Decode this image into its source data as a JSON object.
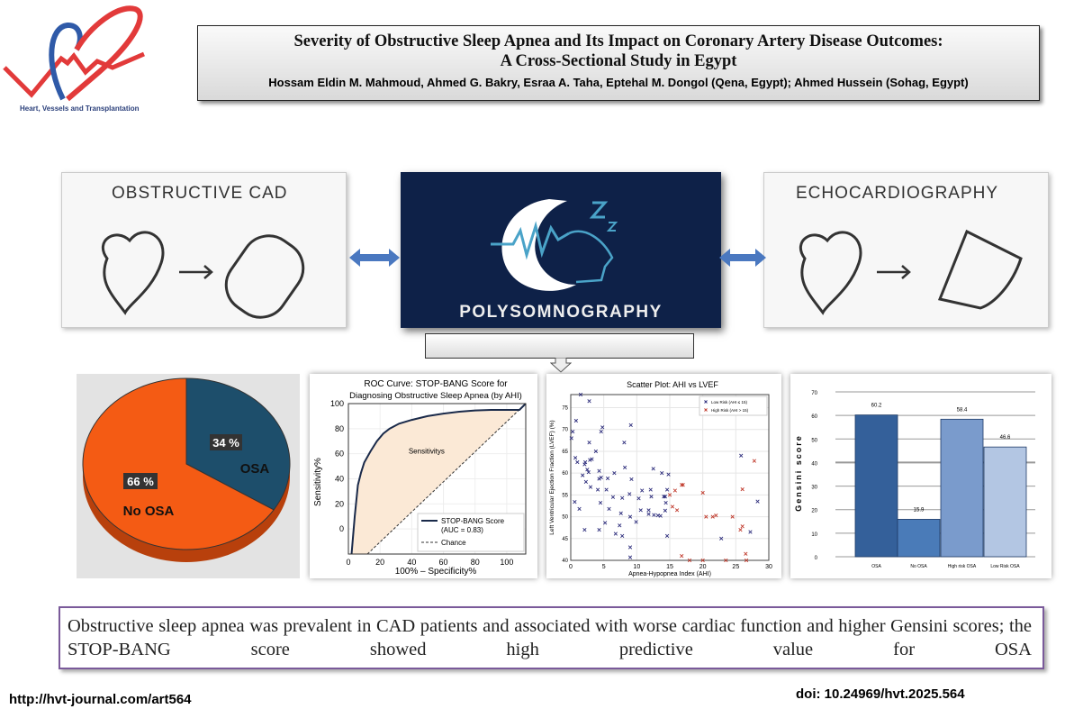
{
  "logo": {
    "text": "Heart, Vessels and Transplantation"
  },
  "header": {
    "title_line1": "Severity of Obstructive Sleep Apnea and Its Impact on Coronary Artery Disease Outcomes:",
    "title_line2": "A Cross-Sectional Study in Egypt",
    "authors": "Hossam Eldin M. Mahmoud, Ahmed G. Bakry, Esraa A. Taha, Eptehal M. Dongol (Qena, Egypt); Ahmed Hussein (Sohag, Egypt)"
  },
  "panels": {
    "left": "OBSTRUCTIVE CAD",
    "center": "POLYSOMNOGRAPHY",
    "right": "ECHOCARDIOGRAPHY"
  },
  "colors": {
    "navy": "#0e2148",
    "osa": "#1d4e6b",
    "no_osa": "#f45b14",
    "roc_line": "#1a2a4a",
    "roc_fill": "#fbe9d6",
    "low_risk": "#2a2a7a",
    "high_risk": "#c0392b",
    "bar_osa": "#34609a",
    "bar_no_osa": "#4a7bb8",
    "bar_high": "#7a9bcc",
    "bar_low": "#b3c6e3"
  },
  "chart_data": [
    {
      "type": "pie",
      "slices": [
        {
          "label": "OSA",
          "value": 34,
          "text": "34 %"
        },
        {
          "label": "No OSA",
          "value": 66,
          "text": "66 %"
        }
      ]
    },
    {
      "type": "line",
      "title": "ROC Curve: STOP-BANG Score for",
      "title2": "Diagnosing Obstructive Sleep Apnea (by AHI)",
      "xlabel": "100% – Specificity%",
      "ylabel": "Sensitivity%",
      "xlim": [
        0,
        112
      ],
      "ylim": [
        -20,
        100
      ],
      "xticks": [
        "0",
        "20",
        "40",
        "60",
        "80",
        "100"
      ],
      "yticks": [
        "0",
        "20",
        "40",
        "60",
        "80",
        "100"
      ],
      "annotation": "Sensitivitys",
      "grid": true,
      "legend": "bottom-right",
      "series": [
        {
          "name": "STOP-BANG Score",
          "name2": "(AUC = 0.83)",
          "x": [
            2,
            4,
            6,
            8,
            10,
            14,
            18,
            22,
            26,
            32,
            40,
            50,
            60,
            70,
            80,
            90,
            100,
            108,
            112
          ],
          "y": [
            -20,
            10,
            35,
            45,
            53,
            62,
            70,
            76,
            80,
            84,
            87,
            90,
            92,
            93.5,
            94.5,
            95,
            95,
            95,
            100
          ]
        },
        {
          "name": "Chance",
          "x": [
            12,
            112
          ],
          "y": [
            -20,
            100
          ]
        }
      ]
    },
    {
      "type": "scatter",
      "title": "Scatter Plot: AHI vs LVEF",
      "xlabel": "Apnea-Hypopnea Index (AHI)",
      "ylabel": "Left Ventricular Ejection Fraction (LVEF) (%)",
      "xlim": [
        0,
        30
      ],
      "ylim": [
        40,
        78
      ],
      "xticks": [
        "0",
        "5",
        "10",
        "15",
        "20",
        "25",
        "30"
      ],
      "yticks": [
        "40",
        "45",
        "50",
        "55",
        "60",
        "65",
        "70",
        "75"
      ],
      "grid": true,
      "legend": "top-right",
      "series": [
        {
          "name": "Low Risk (AHI ≤ 15)",
          "points": [
            [
              1.5,
              78
            ],
            [
              2.8,
              76.5
            ],
            [
              0.8,
              72
            ],
            [
              9.1,
              71
            ],
            [
              4.8,
              70.5
            ],
            [
              4.6,
              69.5
            ],
            [
              0.3,
              69.5
            ],
            [
              0.1,
              68
            ],
            [
              2.8,
              67
            ],
            [
              8.1,
              67
            ],
            [
              3.8,
              65
            ],
            [
              0.7,
              63.5
            ],
            [
              3.2,
              63.2
            ],
            [
              2.9,
              63
            ],
            [
              1,
              62.5
            ],
            [
              2.2,
              62.5
            ],
            [
              2.1,
              62
            ],
            [
              8.2,
              61.3
            ],
            [
              2.5,
              60.8
            ],
            [
              12.5,
              61
            ],
            [
              2.7,
              60.2
            ],
            [
              4.3,
              60.5
            ],
            [
              6.6,
              60
            ],
            [
              13.8,
              60
            ],
            [
              14.8,
              59.7
            ],
            [
              1.8,
              59.5
            ],
            [
              4.6,
              59
            ],
            [
              5.6,
              58.8
            ],
            [
              4.3,
              58.7
            ],
            [
              9.2,
              58.6
            ],
            [
              2.3,
              58
            ],
            [
              3,
              56.8
            ],
            [
              4.1,
              56.2
            ],
            [
              5.4,
              56.2
            ],
            [
              10.8,
              56
            ],
            [
              12.1,
              56.2
            ],
            [
              14.6,
              56.2
            ],
            [
              8.9,
              55.2
            ],
            [
              6.4,
              54.5
            ],
            [
              7.8,
              54.3
            ],
            [
              10.3,
              54.2
            ],
            [
              12.2,
              54.6
            ],
            [
              14.1,
              54.6
            ],
            [
              14.3,
              54.6
            ],
            [
              0.6,
              53.4
            ],
            [
              4.5,
              53.2
            ],
            [
              14.4,
              53.2
            ],
            [
              1.3,
              51.8
            ],
            [
              5.8,
              51.8
            ],
            [
              10.6,
              51.5
            ],
            [
              11.8,
              51.5
            ],
            [
              14.3,
              51.4
            ],
            [
              7.6,
              50.8
            ],
            [
              11.8,
              50.6
            ],
            [
              12.6,
              50.4
            ],
            [
              13.2,
              50.3
            ],
            [
              13.6,
              50.2
            ],
            [
              9,
              50
            ],
            [
              5.2,
              48.6
            ],
            [
              9.9,
              48.8
            ],
            [
              7.4,
              48
            ],
            [
              2.1,
              47
            ],
            [
              4.3,
              47
            ],
            [
              6.8,
              46.1
            ],
            [
              7.8,
              45.6
            ],
            [
              14.6,
              45.6
            ],
            [
              9,
              43
            ],
            [
              9,
              40.7
            ],
            [
              25.8,
              64
            ],
            [
              27.2,
              46.5
            ],
            [
              28.3,
              53.5
            ],
            [
              22.8,
              45
            ]
          ]
        },
        {
          "name": "High Risk (AHI > 15)",
          "points": [
            [
              15,
              55
            ],
            [
              15.4,
              52.3
            ],
            [
              16.1,
              51.5
            ],
            [
              15.8,
              56
            ],
            [
              16.8,
              57.3
            ],
            [
              17,
              57.3
            ],
            [
              20,
              55.5
            ],
            [
              20.5,
              50
            ],
            [
              21.5,
              50
            ],
            [
              22,
              50.3
            ],
            [
              24.5,
              50
            ],
            [
              25.7,
              47
            ],
            [
              26,
              47.8
            ],
            [
              26,
              56.3
            ],
            [
              27.8,
              62.8
            ],
            [
              26.5,
              41.5
            ],
            [
              16.8,
              41
            ],
            [
              26.6,
              40
            ],
            [
              23.5,
              40
            ],
            [
              18,
              40
            ],
            [
              20,
              40
            ]
          ]
        }
      ]
    },
    {
      "type": "bar",
      "ylabel": "Gensini score",
      "ylim": [
        0,
        70
      ],
      "yticks": [
        "0",
        "10",
        "20",
        "30",
        "40",
        "50",
        "60",
        "70"
      ],
      "grid": true,
      "categories": [
        "OSA",
        "No OSA",
        "High risk OSA",
        "Low Risk OSA"
      ],
      "values": [
        60.2,
        15.9,
        58.4,
        46.6
      ],
      "labels": [
        "60.2",
        "15.9",
        "58.4",
        "46.6"
      ],
      "legend": "bottom"
    }
  ],
  "conclusion": "Obstructive sleep apnea was prevalent in CAD patients and associated with worse cardiac function and higher Gensini scores; the STOP-BANG score showed high predictive value for OSA",
  "footer": {
    "url": "http://hvt-journal.com/art564",
    "doi": "doi: 10.24969/hvt.2025.564"
  }
}
